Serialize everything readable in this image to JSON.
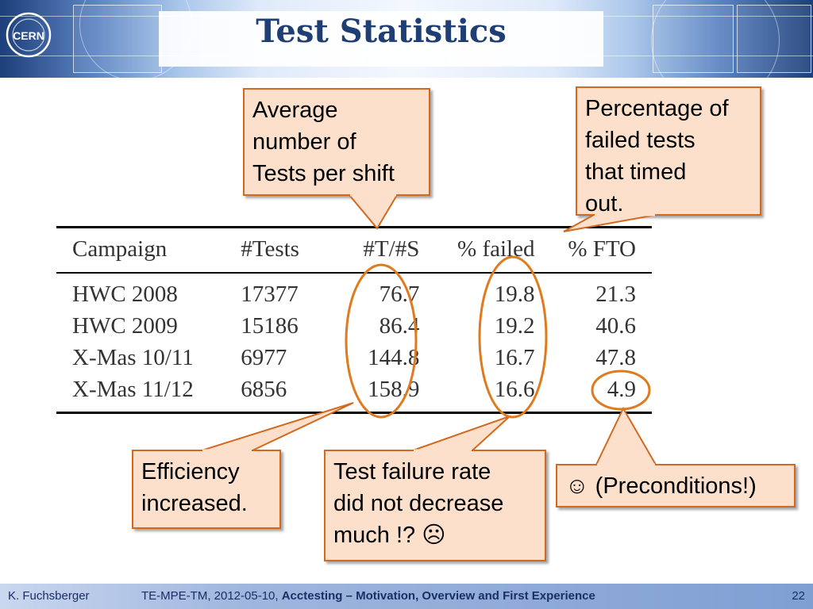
{
  "header": {
    "title": "Test Statistics",
    "logo_text": "CERN"
  },
  "table": {
    "columns": [
      "Campaign",
      "#Tests",
      "#T/#S",
      "% failed",
      "% FTO"
    ],
    "rows": [
      [
        "HWC 2008",
        "17377",
        "76.7",
        "19.8",
        "21.3"
      ],
      [
        "HWC 2009",
        "15186",
        "86.4",
        "19.2",
        "40.6"
      ],
      [
        "X-Mas 10/11",
        "6977",
        "144.8",
        "16.7",
        "47.8"
      ],
      [
        "X-Mas 11/12",
        "6856",
        "158.9",
        "16.6",
        "4.9"
      ]
    ]
  },
  "callouts": {
    "avg_tests": [
      "Average",
      "number of",
      "Tests per shift"
    ],
    "pct_timed_out": [
      "Percentage of",
      "failed tests",
      "that timed",
      "out."
    ],
    "efficiency": [
      "Efficiency",
      "increased."
    ],
    "failure_rate": [
      "Test failure rate",
      "did not decrease",
      "much !? ☹"
    ],
    "preconditions": [
      "☺ (Preconditions!)"
    ]
  },
  "footer": {
    "author": "K. Fuchsberger",
    "meta": "TE-MPE-TM, 2012-05-10, ",
    "talk_title": "Acctesting – Motivation, Overview and First Experience",
    "page": "22"
  },
  "colors": {
    "title": "#1f3e74",
    "callout_fill": "#fde0cb",
    "callout_border": "#d2691e",
    "highlight_ellipse": "#e07a1e"
  }
}
